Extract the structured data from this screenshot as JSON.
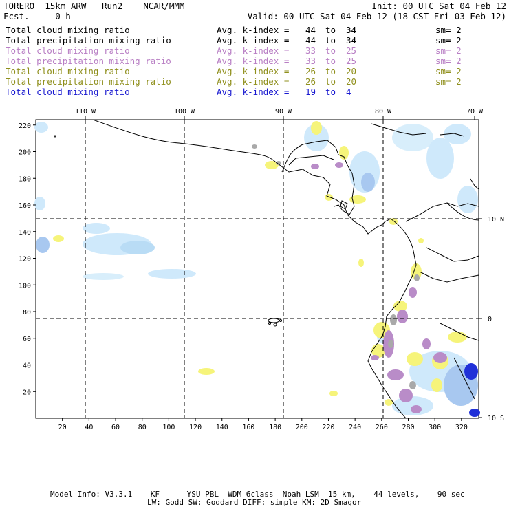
{
  "header": {
    "left1": "TORERO  15km ARW   Run2    NCAR/MMM",
    "left2": "Fcst.     0 h",
    "init": "Init: 00 UTC Sat 04 Feb 12",
    "valid": "Valid: 00 UTC Sat 04 Feb 12 (18 CST Fri 03 Feb 12)"
  },
  "legend": [
    {
      "field": "Total cloud mixing ratio",
      "stat": "Avg. k-index = ",
      "from": "44",
      "to": "34",
      "sm": "sm= 2",
      "color": "#000000"
    },
    {
      "field": "Total precipitation mixing ratio",
      "stat": "Avg. k-index = ",
      "from": "44",
      "to": "34",
      "sm": "sm= 2",
      "color": "#000000"
    },
    {
      "field": "Total cloud mixing ratio",
      "stat": "Avg. k-index = ",
      "from": "33",
      "to": "25",
      "sm": "sm= 2",
      "color": "#b87ec4"
    },
    {
      "field": "Total precipitation mixing ratio",
      "stat": "Avg. k-index = ",
      "from": "33",
      "to": "25",
      "sm": "sm= 2",
      "color": "#b87ec4"
    },
    {
      "field": "Total cloud mixing ratio",
      "stat": "Avg. k-index = ",
      "from": "26",
      "to": "20",
      "sm": "sm= 2",
      "color": "#8f8f1c"
    },
    {
      "field": "Total precipitation mixing ratio",
      "stat": "Avg. k-index = ",
      "from": "26",
      "to": "20",
      "sm": "sm= 2",
      "color": "#8f8f1c"
    },
    {
      "field": "Total cloud mixing ratio",
      "stat": "Avg. k-index = ",
      "from": "19",
      "to": "4",
      "sm": "",
      "color": "#1818d0"
    }
  ],
  "map": {
    "lon_labels": [
      "110 W",
      "100 W",
      "90 W",
      "80 W",
      "70 W"
    ],
    "lat_labels": [
      "10 N",
      "0",
      "10 S"
    ],
    "x_ticks": [
      "20",
      "40",
      "60",
      "80",
      "100",
      "120",
      "140",
      "160",
      "180",
      "200",
      "220",
      "240",
      "260",
      "280",
      "300",
      "320"
    ],
    "y_ticks": [
      "20",
      "40",
      "60",
      "80",
      "100",
      "120",
      "140",
      "160",
      "180",
      "200",
      "220"
    ],
    "colors": {
      "light_blue": "#cfe9fb",
      "mid_blue": "#a8c8f0",
      "dark_blue": "#2030d8",
      "yellow": "#f6f47a",
      "purple": "#b98cc8",
      "gray": "#a9a9a9"
    }
  },
  "footer": {
    "line1": "Model Info: V3.3.1    KF      YSU PBL  WDM 6class  Noah LSM  15 km,    44 levels,    90 sec",
    "line2": "LW: Godd SW: Goddard DIFF: simple KM: 2D Smagor"
  }
}
